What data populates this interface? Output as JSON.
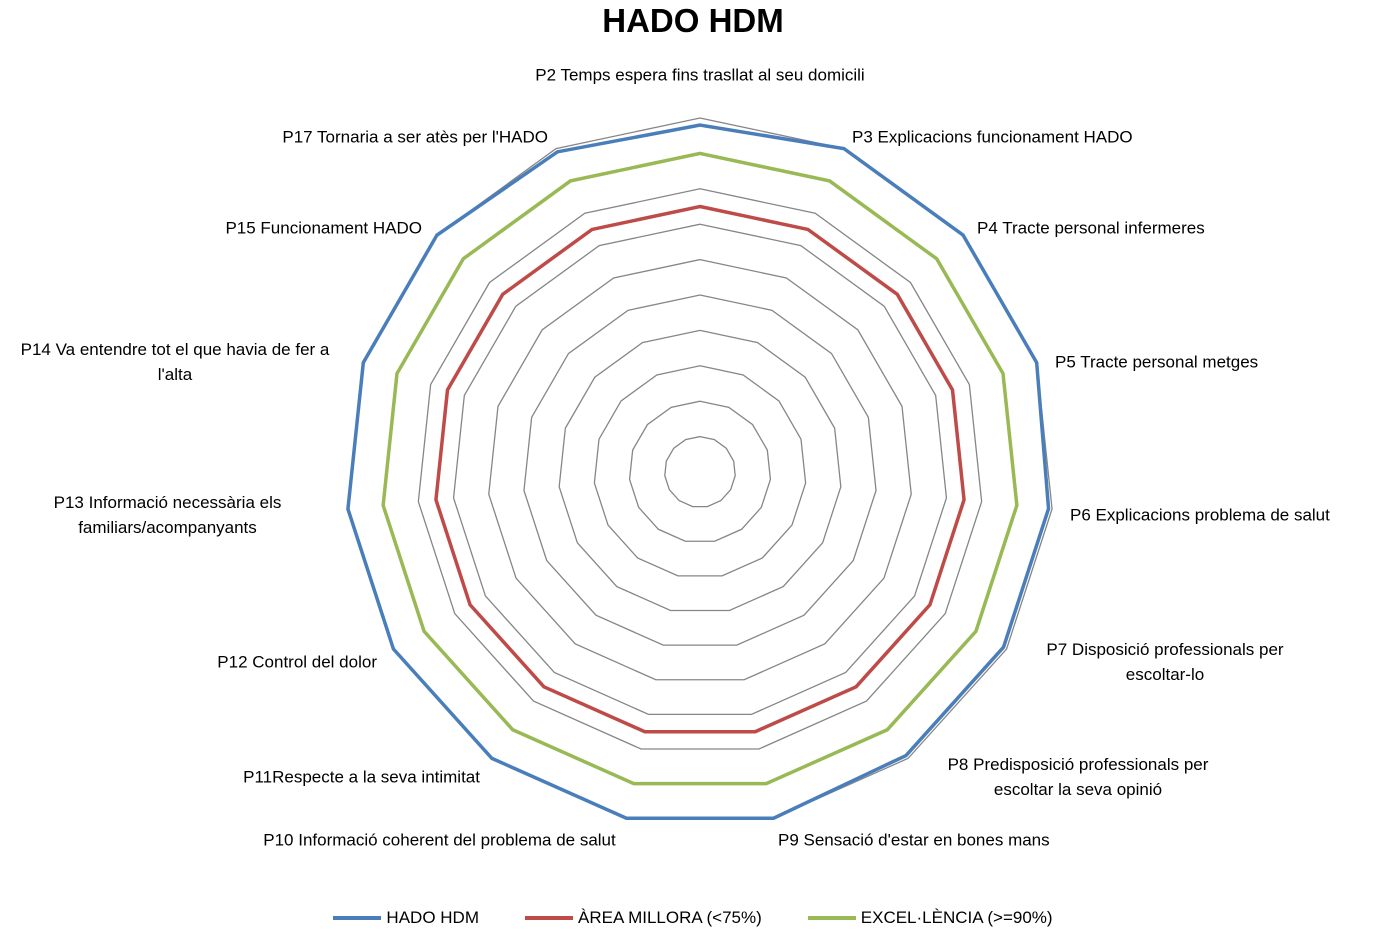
{
  "chart_data": {
    "type": "radar",
    "title": "HADO HDM",
    "categories": [
      "P2 Temps espera fins trasllat al seu domicili",
      "P3 Explicacions funcionament HADO",
      "P4 Tracte personal infermeres",
      "P5 Tracte personal metges",
      "P6 Explicacions problema de salut",
      "P7 Disposició professionals per escoltar-lo",
      "P8 Predisposició professionals per escoltar la seva opinió",
      "P9 Sensació d'estar en bones mans",
      "P10 Informació coherent del problema de salut",
      "P11Respecte a la seva intimitat",
      "P12 Control del dolor",
      "P13 Informació necessària els familiars/acompanyants",
      "P14 Va entendre tot el que havia de fer a l'alta",
      "P15 Funcionament HADO",
      "P17 Tornaria a ser atès per l'HADO"
    ],
    "series": [
      {
        "name": "HADO HDM",
        "color": "#4a7ebb",
        "values": [
          98,
          100,
          100,
          100,
          99,
          99,
          99,
          100,
          100,
          100,
          100,
          100,
          100,
          100,
          99
        ]
      },
      {
        "name": "ÀREA MILLORA (<75%)",
        "color": "#be4b48",
        "values": [
          75,
          75,
          75,
          75,
          75,
          75,
          75,
          75,
          75,
          75,
          75,
          75,
          75,
          75,
          75
        ]
      },
      {
        "name": "EXCEL·LÈNCIA (>=90%)",
        "color": "#98b954",
        "values": [
          90,
          90,
          90,
          90,
          90,
          90,
          90,
          90,
          90,
          90,
          90,
          90,
          90,
          90,
          90
        ]
      }
    ],
    "ylim": [
      0,
      100
    ],
    "yticks": [
      0,
      10,
      20,
      30,
      40,
      50,
      60,
      70,
      80,
      90,
      100
    ],
    "grid": true,
    "grid_color": "#868686",
    "legend": "bottom"
  }
}
